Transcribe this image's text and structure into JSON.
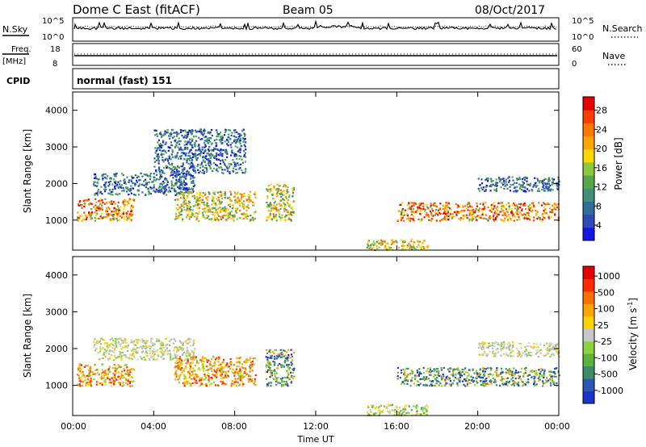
{
  "header": {
    "title": "Dome C East (fitACF)",
    "beam": "Beam 05",
    "date": "08/Oct/2017"
  },
  "top_panels": {
    "nsky": {
      "label": "N.Sky",
      "left_ticks": [
        "10^5",
        "10^0"
      ],
      "right_label": "N.Search",
      "right_ticks": [
        "10^5",
        "10^0"
      ]
    },
    "freq": {
      "label_top": "Freq.",
      "label_unit": "[MHz]",
      "left_ticks": [
        "18",
        "8"
      ],
      "right_label": "Nave",
      "right_ticks": [
        "60",
        "0"
      ]
    },
    "cpid": {
      "label": "CPID",
      "value": "normal (fast) 151"
    }
  },
  "x_axis": {
    "ticks": [
      "00:00",
      "04:00",
      "08:00",
      "12:00",
      "16:00",
      "20:00",
      "00:00"
    ],
    "label": "Time UT"
  },
  "chart_data": [
    {
      "type": "heatmap",
      "name": "power",
      "ylabel": "Slant Range [km]",
      "y_ticks": [
        "1000",
        "2000",
        "3000",
        "4000"
      ],
      "ylim": [
        180,
        4500
      ],
      "xlim_hours": [
        0,
        24
      ],
      "colorbar": {
        "label": "Power [dB]",
        "ticks": [
          "4",
          "8",
          "12",
          "16",
          "20",
          "24",
          "28"
        ],
        "range": [
          0,
          30
        ],
        "colors": [
          "#1515e6",
          "#2d4bb4",
          "#2f6e96",
          "#3f8f7a",
          "#56a64a",
          "#8cc83c",
          "#ffd700",
          "#ffa500",
          "#ff7800",
          "#ff3c00",
          "#e60000"
        ]
      },
      "echo_regions": [
        {
          "t": [
            0.2,
            3.0
          ],
          "range_km": [
            1000,
            1600
          ],
          "level": "high"
        },
        {
          "t": [
            1.0,
            6.0
          ],
          "range_km": [
            1700,
            2300
          ],
          "level": "low"
        },
        {
          "t": [
            5.0,
            9.0
          ],
          "range_km": [
            1000,
            1800
          ],
          "level": "mid"
        },
        {
          "t": [
            4.0,
            8.5
          ],
          "range_km": [
            2300,
            3500
          ],
          "level": "low"
        },
        {
          "t": [
            9.5,
            10.9
          ],
          "range_km": [
            1000,
            2000
          ],
          "level": "mid"
        },
        {
          "t": [
            14.5,
            17.5
          ],
          "range_km": [
            200,
            500
          ],
          "level": "mid"
        },
        {
          "t": [
            16.0,
            24.0
          ],
          "range_km": [
            1000,
            1500
          ],
          "level": "high"
        },
        {
          "t": [
            20.0,
            24.0
          ],
          "range_km": [
            1800,
            2200
          ],
          "level": "low"
        }
      ]
    },
    {
      "type": "heatmap",
      "name": "velocity",
      "ylabel": "Slant Range [km]",
      "y_ticks": [
        "1000",
        "2000",
        "3000",
        "4000"
      ],
      "ylim": [
        180,
        4500
      ],
      "xlim_hours": [
        0,
        24
      ],
      "colorbar": {
        "label": "Velocity [m s",
        "label_sup": "-1",
        "label_end": "]",
        "ticks": [
          "1000",
          "500",
          "100",
          "25",
          "-25",
          "-100",
          "-500",
          "-1000"
        ],
        "range": [
          -1200,
          1200
        ],
        "colors": [
          "#1b33c8",
          "#2d55b4",
          "#3c8c64",
          "#5ab43c",
          "#8cd23c",
          "#c8c8c8",
          "#ffd200",
          "#ffa500",
          "#ff6e00",
          "#ff2800",
          "#e60000"
        ]
      },
      "echo_regions": [
        {
          "t": [
            0.2,
            3.0
          ],
          "range_km": [
            1000,
            1600
          ],
          "level": "away"
        },
        {
          "t": [
            1.0,
            6.0
          ],
          "range_km": [
            1700,
            2300
          ],
          "level": "near-zero"
        },
        {
          "t": [
            5.0,
            9.0
          ],
          "range_km": [
            1000,
            1800
          ],
          "level": "away"
        },
        {
          "t": [
            9.5,
            10.9
          ],
          "range_km": [
            1000,
            2000
          ],
          "level": "toward"
        },
        {
          "t": [
            14.5,
            17.5
          ],
          "range_km": [
            200,
            500
          ],
          "level": "mixed"
        },
        {
          "t": [
            16.0,
            24.0
          ],
          "range_km": [
            1000,
            1500
          ],
          "level": "toward"
        },
        {
          "t": [
            20.0,
            24.0
          ],
          "range_km": [
            1800,
            2200
          ],
          "level": "near-zero"
        }
      ]
    }
  ]
}
